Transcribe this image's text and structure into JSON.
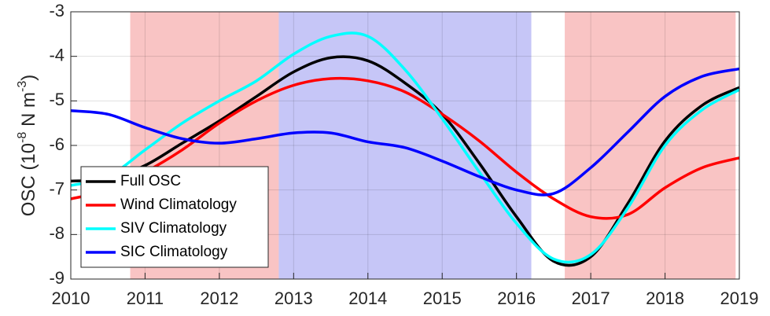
{
  "chart_data": {
    "type": "line",
    "ylabel_parts": [
      "OSC (10",
      "-8",
      " N m",
      "-3",
      ")"
    ],
    "x": [
      2010,
      2010.5,
      2011,
      2011.5,
      2012,
      2012.5,
      2013,
      2013.5,
      2014,
      2014.5,
      2015,
      2015.5,
      2016,
      2016.5,
      2017,
      2017.5,
      2018,
      2018.5,
      2019
    ],
    "series": [
      {
        "name": "Full OSC",
        "color": "#000000",
        "values": [
          -6.8,
          -6.75,
          -6.45,
          -5.95,
          -5.45,
          -4.9,
          -4.35,
          -4.03,
          -4.1,
          -4.6,
          -5.3,
          -6.4,
          -7.6,
          -8.6,
          -8.5,
          -7.3,
          -5.9,
          -5.1,
          -4.7
        ]
      },
      {
        "name": "Wind Climatology",
        "color": "#ff0000",
        "values": [
          -7.2,
          -7.0,
          -6.6,
          -6.1,
          -5.5,
          -5.0,
          -4.65,
          -4.5,
          -4.55,
          -4.8,
          -5.3,
          -5.9,
          -6.6,
          -7.2,
          -7.6,
          -7.55,
          -6.95,
          -6.5,
          -6.28
        ]
      },
      {
        "name": "SIV Climatology",
        "color": "#00ffff",
        "values": [
          -6.9,
          -6.7,
          -6.1,
          -5.5,
          -5.0,
          -4.55,
          -3.95,
          -3.55,
          -3.55,
          -4.3,
          -5.4,
          -6.6,
          -7.75,
          -8.55,
          -8.45,
          -7.4,
          -6.0,
          -5.2,
          -4.75
        ]
      },
      {
        "name": "SIC Climatology",
        "color": "#0000ff",
        "values": [
          -5.22,
          -5.3,
          -5.6,
          -5.85,
          -5.95,
          -5.85,
          -5.72,
          -5.72,
          -5.92,
          -6.05,
          -6.35,
          -6.7,
          -7.0,
          -7.08,
          -6.5,
          -5.7,
          -4.9,
          -4.45,
          -4.28
        ]
      }
    ],
    "shaded": [
      {
        "start": 2010.8,
        "end": 2012.8,
        "color": "#f9c4c4"
      },
      {
        "start": 2012.8,
        "end": 2016.2,
        "color": "#c6c6f7"
      },
      {
        "start": 2016.65,
        "end": 2018.95,
        "color": "#f9c4c4"
      }
    ],
    "xlim": [
      2010,
      2019
    ],
    "xticks": [
      2010,
      2011,
      2012,
      2013,
      2014,
      2015,
      2016,
      2017,
      2018,
      2019
    ],
    "ylim": [
      -9,
      -3
    ],
    "yticks": [
      -9,
      -8,
      -7,
      -6,
      -5,
      -4,
      -3
    ],
    "grid": true,
    "legend": "lower left"
  }
}
